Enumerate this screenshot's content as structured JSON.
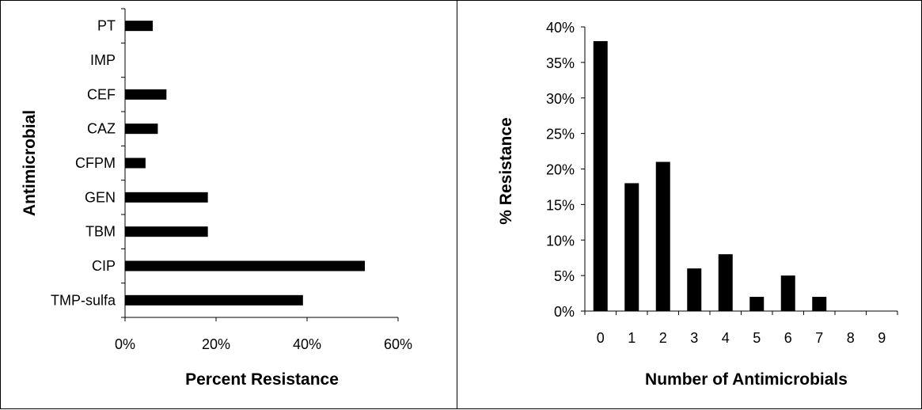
{
  "chart_data": [
    {
      "type": "bar",
      "orientation": "horizontal",
      "categories": [
        "PT",
        "IMP",
        "CEF",
        "CAZ",
        "CFPM",
        "GEN",
        "TBM",
        "CIP",
        "TMP-sulfa"
      ],
      "values": [
        6.1,
        0,
        9.1,
        7.2,
        4.5,
        18.2,
        18.2,
        52.7,
        39.1
      ],
      "xlabel": "Percent Resistance",
      "ylabel": "Antimicrobial",
      "xlim": [
        0,
        60
      ],
      "xticks": [
        "0%",
        "20%",
        "40%",
        "60%"
      ],
      "grid": false,
      "color": "#000000"
    },
    {
      "type": "bar",
      "orientation": "vertical",
      "categories": [
        "0",
        "1",
        "2",
        "3",
        "4",
        "5",
        "6",
        "7",
        "8",
        "9"
      ],
      "values": [
        38,
        18,
        21,
        6,
        8,
        2,
        5,
        2,
        0,
        0
      ],
      "xlabel": "Number of  Antimicrobials",
      "ylabel": "% Resistance",
      "ylim": [
        0,
        40
      ],
      "yticks": [
        "0%",
        "5%",
        "10%",
        "15%",
        "20%",
        "25%",
        "30%",
        "35%",
        "40%"
      ],
      "grid": false,
      "color": "#000000"
    }
  ]
}
